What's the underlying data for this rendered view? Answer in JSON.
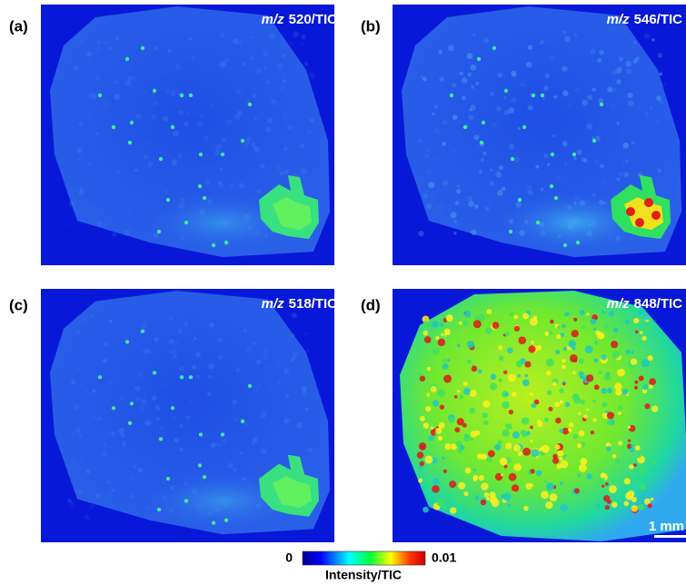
{
  "panels": [
    {
      "label": "(a)",
      "mz": "m/z",
      "title": "520/TIC"
    },
    {
      "label": "(b)",
      "mz": "m/z",
      "title": "546/TIC"
    },
    {
      "label": "(c)",
      "mz": "m/z",
      "title": "518/TIC"
    },
    {
      "label": "(d)",
      "mz": "m/z",
      "title": "848/TIC"
    }
  ],
  "scale_bar": "1 mm",
  "colorbar": {
    "min": "0",
    "max": "0.01",
    "label": "Intensity/TIC"
  }
}
